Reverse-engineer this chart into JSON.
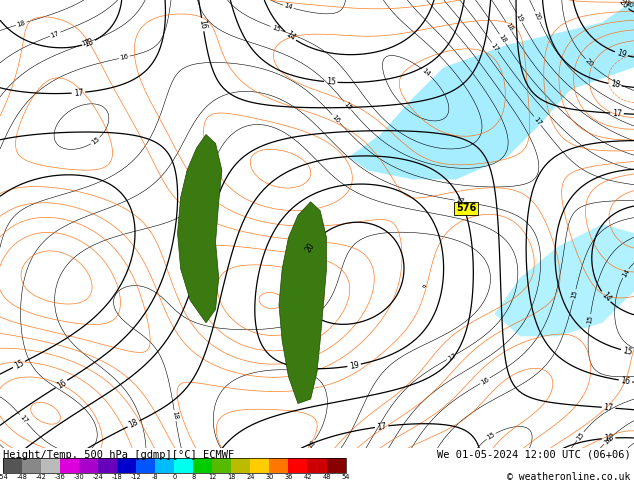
{
  "title_left": "Height/Temp. 500 hPa [gdmp][°C] ECMWF",
  "title_right": "We 01-05-2024 12:00 UTC (06+06)",
  "copyright": "© weatheronline.co.uk",
  "bg_cyan": "#00c8ff",
  "bg_light": "#80e8ff",
  "contour_color": "#000000",
  "orange_contour": "#ff6600",
  "green_land": "#3a7a10",
  "label_576": "576",
  "cbar_colors": [
    "#555555",
    "#888888",
    "#bbbbbb",
    "#dd00dd",
    "#aa00cc",
    "#6600bb",
    "#0000cc",
    "#0055ff",
    "#00bbff",
    "#00ffee",
    "#00cc00",
    "#55bb00",
    "#bbbb00",
    "#ffcc00",
    "#ff7700",
    "#ff0000",
    "#cc0000",
    "#880000"
  ],
  "cbar_tick_labels": [
    "-54",
    "-48",
    "-42",
    "-36",
    "-30",
    "-24",
    "-18",
    "-12",
    "-8",
    "0",
    "8",
    "12",
    "18",
    "24",
    "30",
    "36",
    "42",
    "48",
    "54"
  ]
}
